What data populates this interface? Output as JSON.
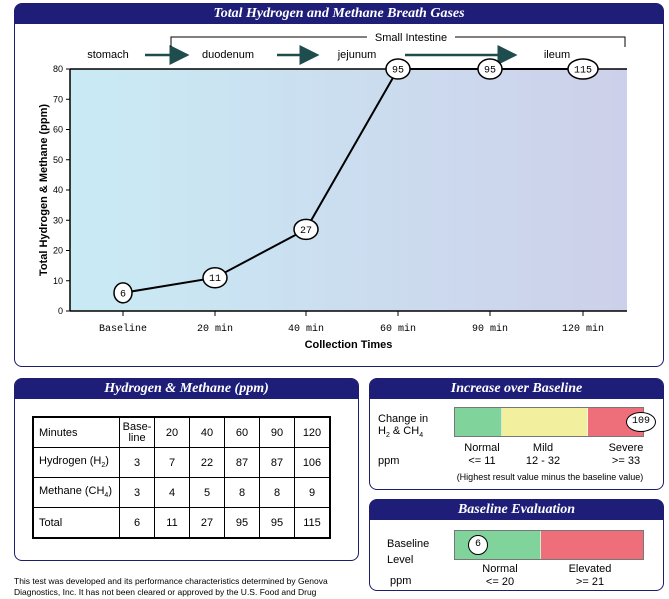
{
  "chart_panel": {
    "title": "Total Hydrogen and Methane Breath Gases"
  },
  "chart_data": {
    "type": "line",
    "title": "Total Hydrogen and Methane Breath Gases",
    "xlabel": "Collection Times",
    "ylabel": "Total Hydrogen & Methane (ppm)",
    "categories": [
      "Baseline",
      "20 min",
      "40 min",
      "60 min",
      "90 min",
      "120 min"
    ],
    "values": [
      6,
      11,
      27,
      95,
      95,
      115
    ],
    "point_labels": [
      "6",
      "11",
      "27",
      "95",
      "95",
      "115"
    ],
    "ylim": [
      0,
      80
    ],
    "yticks": [
      0,
      10,
      20,
      30,
      40,
      50,
      60,
      70,
      80
    ],
    "grid": false,
    "regions": {
      "bracket_label": "Small Intestine",
      "labels": [
        "stomach",
        "duodenum",
        "jejunum",
        "ileum"
      ]
    }
  },
  "hm_table": {
    "title": "Hydrogen & Methane (ppm)",
    "header": {
      "label": "Minutes",
      "baseline_line1": "Base-",
      "baseline_line2": "line",
      "cols": [
        "20",
        "40",
        "60",
        "90",
        "120"
      ]
    },
    "rows": [
      {
        "label": "Hydrogen (H",
        "sub": "2",
        "label_end": ")",
        "values": [
          "3",
          "7",
          "22",
          "87",
          "87",
          "106"
        ]
      },
      {
        "label": "Methane (CH",
        "sub": "4",
        "label_end": ")",
        "values": [
          "3",
          "4",
          "5",
          "8",
          "8",
          "9"
        ]
      },
      {
        "label": "Total",
        "sub": "",
        "label_end": "",
        "values": [
          "6",
          "11",
          "27",
          "95",
          "95",
          "115"
        ]
      }
    ]
  },
  "increase": {
    "title": "Increase over Baseline",
    "change_label_1": "Change in",
    "change_label_2a": "H",
    "change_label_2b": " & CH",
    "ppm_label": "ppm",
    "normal_label": "Normal",
    "normal_range": "<= 11",
    "mild_label": "Mild",
    "mild_range": "12 - 32",
    "severe_label": "Severe",
    "severe_range": ">= 33",
    "note": "(Highest result value minus the baseline value)",
    "marker_value": "109",
    "colors": {
      "normal": "#7fd29a",
      "mild": "#f3f0a0",
      "severe": "#ef6f7a"
    }
  },
  "baseline": {
    "title": "Baseline Evaluation",
    "level_label_1": "Baseline",
    "level_label_2": "Level",
    "ppm_label": "ppm",
    "normal_label": "Normal",
    "normal_range": "<= 20",
    "elevated_label": "Elevated",
    "elevated_range": ">= 21",
    "marker_value": "6",
    "colors": {
      "normal": "#7fd29a",
      "elevated": "#ef6f7a"
    }
  },
  "footer": {
    "text": "This test was developed and its performance characteristics determined by Genova Diagnostics, Inc.  It has not been cleared or approved by the U.S. Food and Drug"
  }
}
